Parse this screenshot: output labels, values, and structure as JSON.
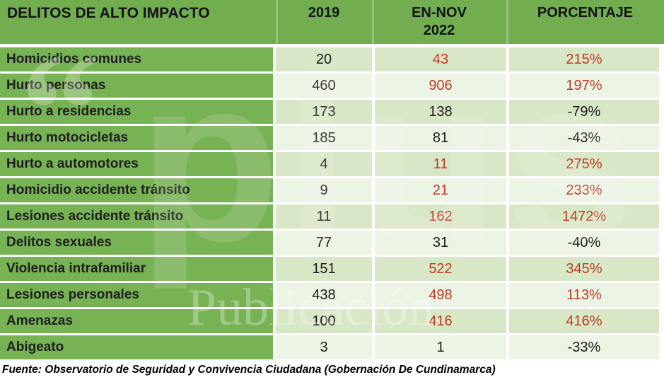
{
  "table": {
    "header": {
      "category": "DELITOS DE ALTO IMPACTO",
      "col_2019": "2019",
      "col_ennov": "EN-NOV 2022",
      "col_pct": "PORCENTAJE"
    },
    "rows": [
      {
        "label": "Homicidios comunes",
        "y2019": "20",
        "ennov2022": "43",
        "porcentaje": "215%",
        "value_color": "#bf3a28"
      },
      {
        "label": "Hurto personas",
        "y2019": "460",
        "ennov2022": "906",
        "porcentaje": "197%",
        "value_color": "#bf3a28"
      },
      {
        "label": "Hurto a residencias",
        "y2019": "173",
        "ennov2022": "138",
        "porcentaje": "-79%",
        "value_color": "#1a1a1a"
      },
      {
        "label": "Hurto motocicletas",
        "y2019": "185",
        "ennov2022": "81",
        "porcentaje": "-43%",
        "value_color": "#1a1a1a"
      },
      {
        "label": "Hurto a automotores",
        "y2019": "4",
        "ennov2022": "11",
        "porcentaje": "275%",
        "value_color": "#bf3a28"
      },
      {
        "label": "Homicidio accidente tránsito",
        "y2019": "9",
        "ennov2022": "21",
        "porcentaje": "233%",
        "value_color": "#bf3a28"
      },
      {
        "label": "Lesiones accidente tránsito",
        "y2019": "11",
        "ennov2022": "162",
        "porcentaje": "1472%",
        "value_color": "#bf3a28"
      },
      {
        "label": "Delitos sexuales",
        "y2019": "77",
        "ennov2022": "31",
        "porcentaje": "-40%",
        "value_color": "#1a1a1a"
      },
      {
        "label": "Violencia intrafamiliar",
        "y2019": "151",
        "ennov2022": "522",
        "porcentaje": "345%",
        "value_color": "#bf3a28"
      },
      {
        "label": "Lesiones personales",
        "y2019": "438",
        "ennov2022": "498",
        "porcentaje": "113%",
        "value_color": "#bf3a28"
      },
      {
        "label": "Amenazas",
        "y2019": "100",
        "ennov2022": "416",
        "porcentaje": "416%",
        "value_color": "#bf3a28"
      },
      {
        "label": "Abigeato",
        "y2019": "3",
        "ennov2022": "1",
        "porcentaje": "-33%",
        "value_color": "#1a1a1a"
      }
    ]
  },
  "footer": {
    "source": "Fuente: Observatorio de Seguridad y Convivencia Ciudadana (Gobernación De Cundinamarca)"
  },
  "watermark": {
    "quote": "“",
    "brand": "plus",
    "caption": "Publicación"
  },
  "colors": {
    "header_green": "#72ae4f",
    "label_green": "#77b254",
    "band_dark": "#d8e7c6",
    "band_light": "#ecf4e5",
    "increase_red": "#bf3a28",
    "text_black": "#1a1a1a"
  },
  "chart_data": {
    "type": "table",
    "title": "DELITOS DE ALTO IMPACTO",
    "categories": [
      "Homicidios comunes",
      "Hurto personas",
      "Hurto a residencias",
      "Hurto motocicletas",
      "Hurto a automotores",
      "Homicidio accidente tránsito",
      "Lesiones accidente tránsito",
      "Delitos sexuales",
      "Violencia intrafamiliar",
      "Lesiones personales",
      "Amenazas",
      "Abigeato"
    ],
    "series": [
      {
        "name": "2019",
        "values": [
          20,
          460,
          173,
          185,
          4,
          9,
          11,
          77,
          151,
          438,
          100,
          3
        ]
      },
      {
        "name": "EN-NOV 2022",
        "values": [
          43,
          906,
          138,
          81,
          11,
          21,
          162,
          31,
          522,
          498,
          416,
          1
        ]
      },
      {
        "name": "PORCENTAJE",
        "values": [
          "215%",
          "197%",
          "-79%",
          "-43%",
          "275%",
          "233%",
          "1472%",
          "-40%",
          "345%",
          "113%",
          "416%",
          "-33%"
        ]
      }
    ],
    "notes": "Increases shown in red (#bf3a28), decreases in black",
    "source": "Fuente: Observatorio de Seguridad y Convivencia Ciudadana (Gobernación De Cundinamarca)"
  }
}
